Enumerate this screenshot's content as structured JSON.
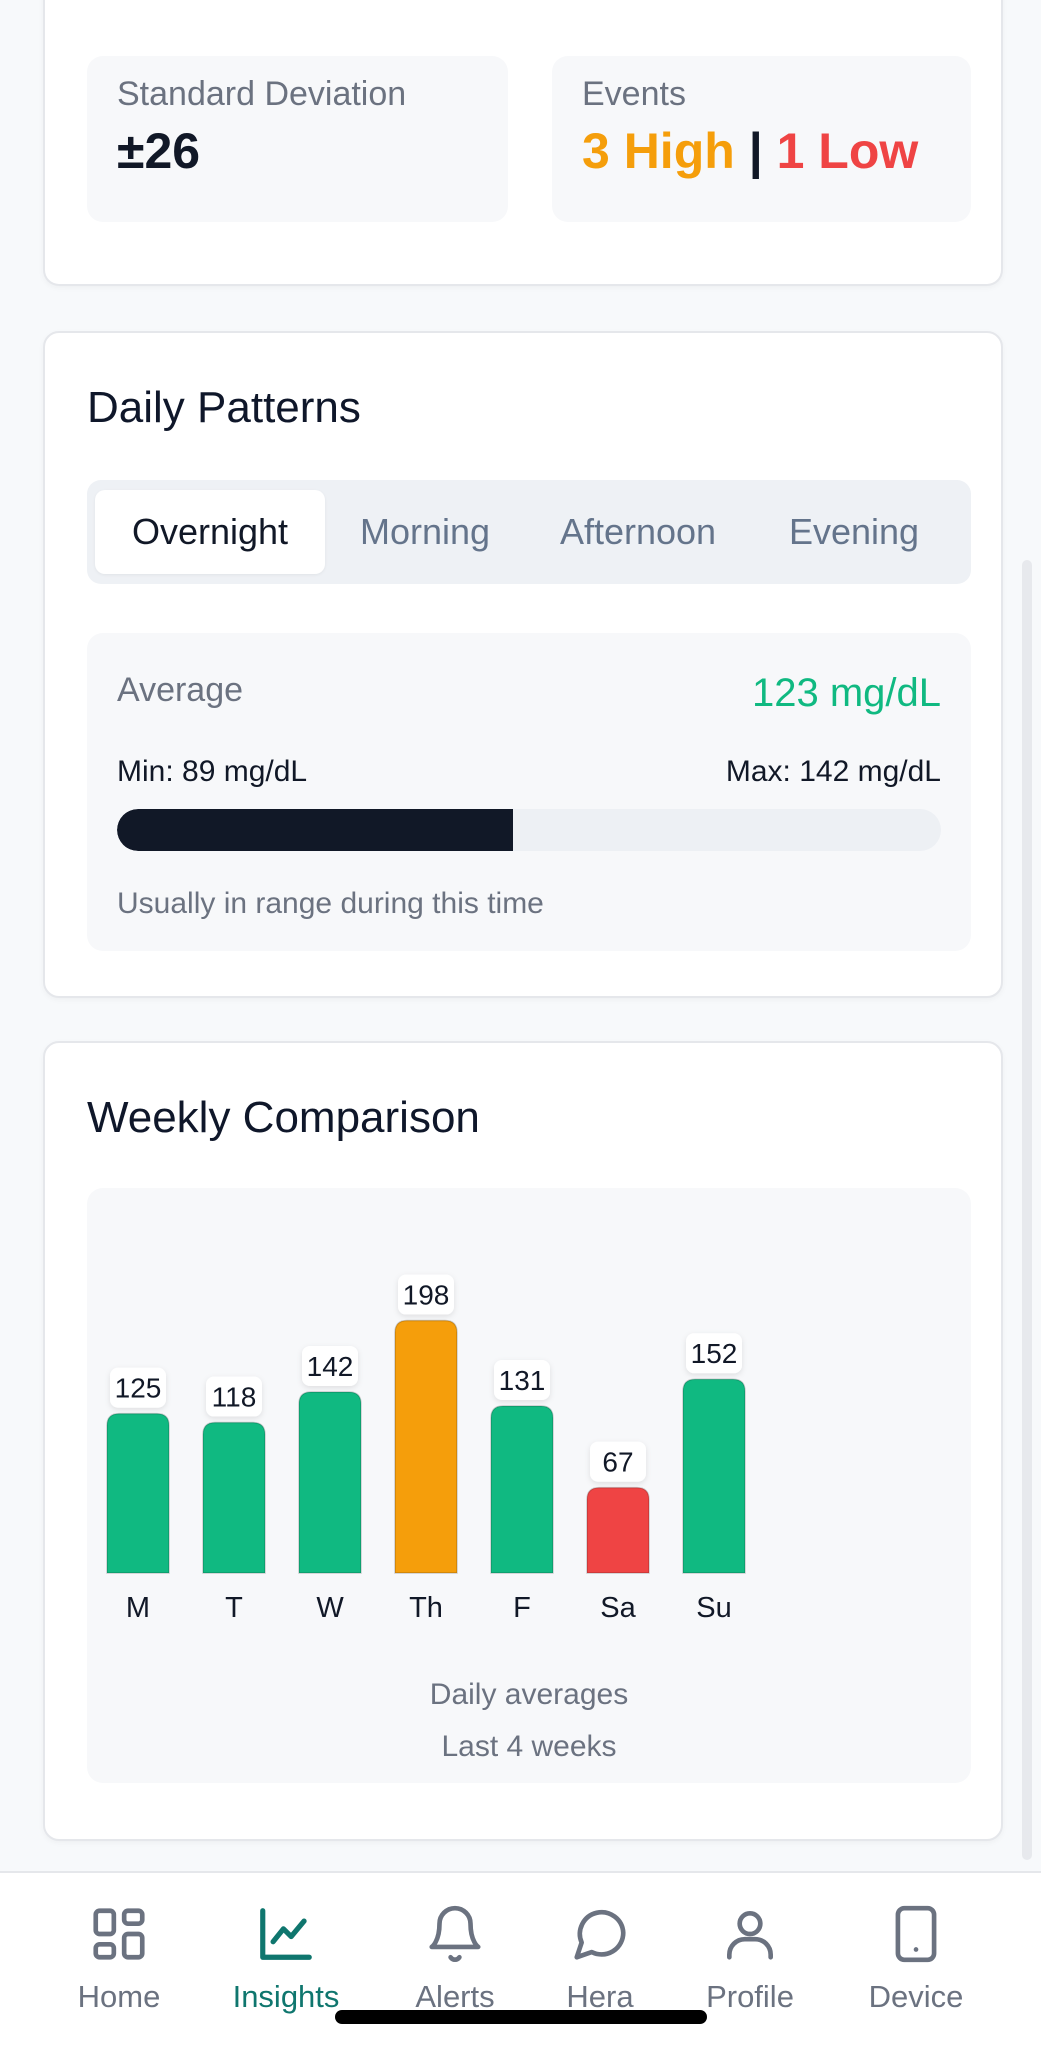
{
  "stats": {
    "std_dev_label": "Standard Deviation",
    "std_dev_value": "±26",
    "events_label": "Events",
    "events_high": "3 High",
    "events_sep": "|",
    "events_low": "1 Low"
  },
  "daily_patterns": {
    "title": "Daily Patterns",
    "tabs": [
      "Overnight",
      "Morning",
      "Afternoon",
      "Evening"
    ],
    "average_label": "Average",
    "average_value": "123 mg/dL",
    "min_label": "Min: 89 mg/dL",
    "max_label": "Max: 142 mg/dL",
    "range_fill_fraction": 0.48,
    "note": "Usually in range during this time"
  },
  "weekly": {
    "title": "Weekly Comparison",
    "caption_line1": "Daily averages",
    "caption_line2": "Last 4 weeks"
  },
  "chart_data": {
    "type": "bar",
    "title": "Weekly Comparison",
    "categories": [
      "M",
      "T",
      "W",
      "Th",
      "F",
      "Sa",
      "Su"
    ],
    "values": [
      125,
      118,
      142,
      198,
      131,
      67,
      152
    ],
    "status": [
      "normal",
      "normal",
      "normal",
      "high",
      "normal",
      "low",
      "normal"
    ],
    "colors": {
      "normal": "#10b981",
      "high": "#f59e0b",
      "low": "#ef4444"
    },
    "xlabel": "",
    "ylabel": "",
    "ylim": [
      0,
      200
    ]
  },
  "nav": {
    "items": [
      {
        "label": "Home",
        "icon": "grid-icon"
      },
      {
        "label": "Insights",
        "icon": "chart-line-icon"
      },
      {
        "label": "Alerts",
        "icon": "bell-icon"
      },
      {
        "label": "Hera",
        "icon": "chat-bubble-icon"
      },
      {
        "label": "Profile",
        "icon": "person-icon"
      },
      {
        "label": "Device",
        "icon": "phone-device-icon"
      }
    ],
    "active_color": "#0f766e"
  }
}
